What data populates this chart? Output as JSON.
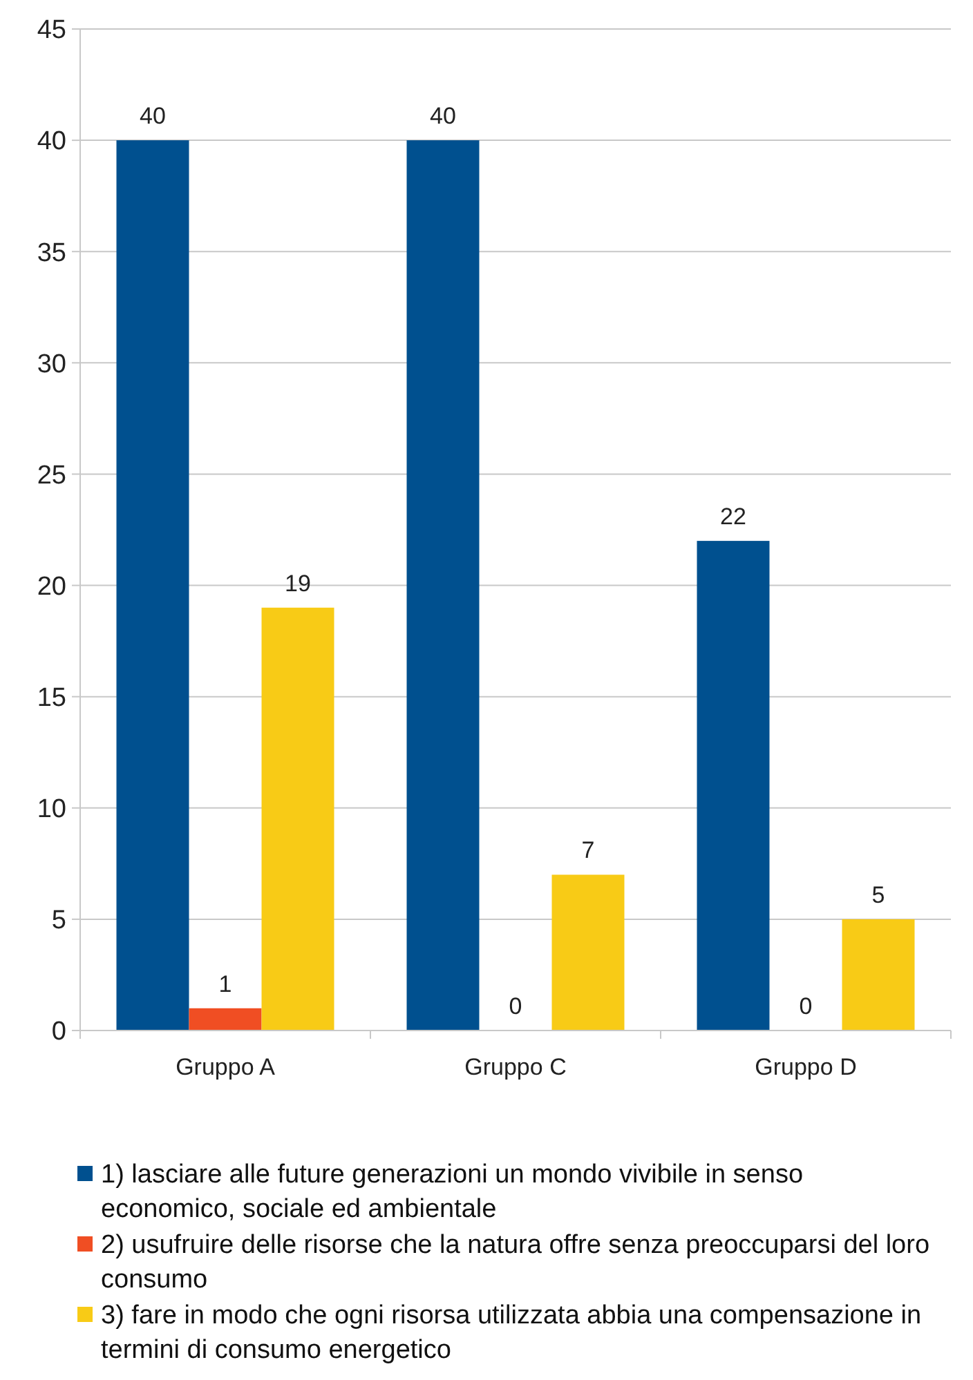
{
  "chart_data": {
    "type": "bar",
    "categories": [
      "Gruppo A",
      "Gruppo C",
      "Gruppo D"
    ],
    "series": [
      {
        "name": "1) lasciare alle future generazioni un mondo vivibile in senso economico, sociale ed ambientale",
        "color": "#00508f",
        "values": [
          40,
          40,
          22
        ]
      },
      {
        "name": "2) usufruire delle risorse che la natura offre senza preoccuparsi del loro consumo",
        "color": "#f04e23",
        "values": [
          1,
          0,
          0
        ]
      },
      {
        "name": "3) fare in modo che ogni risorsa utilizzata abbia una compensazione in termini di consumo energetico",
        "color": "#f8cb16",
        "values": [
          19,
          7,
          5
        ]
      }
    ],
    "ylim": [
      0,
      45
    ],
    "yticks": [
      0,
      5,
      10,
      15,
      20,
      25,
      30,
      35,
      40,
      45
    ],
    "grid": "y",
    "data_labels": true,
    "legend": "bottom"
  }
}
